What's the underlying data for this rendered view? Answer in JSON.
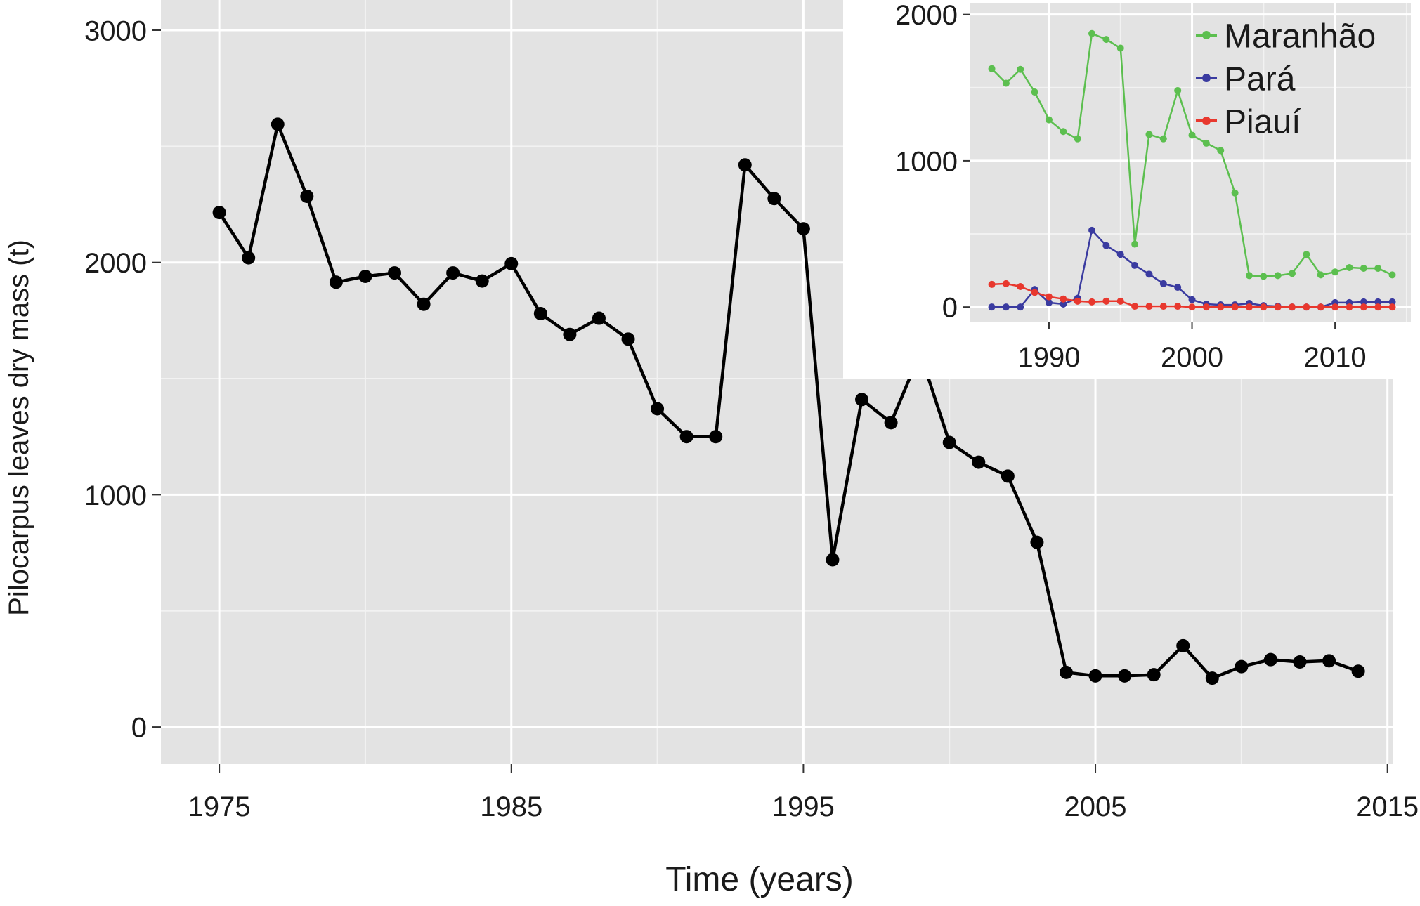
{
  "chart_data": [
    {
      "type": "line",
      "title": "",
      "xlabel": "Time (years)",
      "ylabel": "Pilocarpus leaves dry mass (t)",
      "xlim": [
        1973,
        2015.2
      ],
      "ylim": [
        -160,
        3130
      ],
      "xticks": [
        1975,
        1985,
        1995,
        2005,
        2015
      ],
      "yticks": [
        0,
        1000,
        2000,
        3000
      ],
      "grid": true,
      "legend": "none",
      "series": [
        {
          "color": "#000000",
          "x": [
            1975,
            1976,
            1977,
            1978,
            1979,
            1980,
            1981,
            1982,
            1983,
            1984,
            1985,
            1986,
            1987,
            1988,
            1989,
            1990,
            1991,
            1992,
            1993,
            1994,
            1995,
            1996,
            1997,
            1998,
            1999,
            2000,
            2001,
            2002,
            2003,
            2004,
            2005,
            2006,
            2007,
            2008,
            2009,
            2010,
            2011,
            2012,
            2013,
            2014
          ],
          "y": [
            2215,
            2020,
            2595,
            2285,
            1915,
            1940,
            1955,
            1820,
            1955,
            1920,
            1995,
            1780,
            1690,
            1760,
            1670,
            1370,
            1250,
            1250,
            2420,
            2275,
            2145,
            720,
            1410,
            1310,
            1610,
            1225,
            1140,
            1080,
            795,
            235,
            220,
            220,
            225,
            350,
            210,
            260,
            290,
            280,
            285,
            240
          ]
        }
      ]
    },
    {
      "type": "line",
      "title": "",
      "xlabel": "",
      "ylabel": "",
      "xlim": [
        1984.5,
        2015.3
      ],
      "ylim": [
        -100,
        2080
      ],
      "xticks": [
        1990,
        2000,
        2010
      ],
      "yticks": [
        0,
        1000,
        2000
      ],
      "grid": true,
      "legend": "top-right",
      "series": [
        {
          "name": "Maranhão",
          "color": "#5cbf4f",
          "x": [
            1986,
            1987,
            1988,
            1989,
            1990,
            1991,
            1992,
            1993,
            1994,
            1995,
            1996,
            1997,
            1998,
            1999,
            2000,
            2001,
            2002,
            2003,
            2004,
            2005,
            2006,
            2007,
            2008,
            2009,
            2010,
            2011,
            2012,
            2013,
            2014
          ],
          "y": [
            1630,
            1530,
            1625,
            1470,
            1280,
            1200,
            1150,
            1870,
            1830,
            1770,
            430,
            1180,
            1150,
            1480,
            1175,
            1120,
            1070,
            780,
            215,
            210,
            215,
            230,
            360,
            220,
            240,
            270,
            265,
            265,
            220
          ]
        },
        {
          "name": "Pará",
          "color": "#3a3ba0",
          "x": [
            1986,
            1987,
            1988,
            1989,
            1990,
            1991,
            1992,
            1993,
            1994,
            1995,
            1996,
            1997,
            1998,
            1999,
            2000,
            2001,
            2002,
            2003,
            2004,
            2005,
            2006,
            2007,
            2008,
            2009,
            2010,
            2011,
            2012,
            2013,
            2014
          ],
          "y": [
            0,
            0,
            0,
            120,
            30,
            20,
            60,
            525,
            420,
            360,
            285,
            225,
            160,
            135,
            50,
            20,
            15,
            15,
            25,
            10,
            5,
            0,
            0,
            0,
            30,
            30,
            35,
            35,
            35
          ]
        },
        {
          "name": "Piauí",
          "color": "#e8382e",
          "x": [
            1986,
            1987,
            1988,
            1989,
            1990,
            1991,
            1992,
            1993,
            1994,
            1995,
            1996,
            1997,
            1998,
            1999,
            2000,
            2001,
            2002,
            2003,
            2004,
            2005,
            2006,
            2007,
            2008,
            2009,
            2010,
            2011,
            2012,
            2013,
            2014
          ],
          "y": [
            155,
            160,
            140,
            100,
            70,
            55,
            40,
            35,
            40,
            40,
            5,
            5,
            5,
            5,
            0,
            0,
            0,
            0,
            0,
            0,
            0,
            0,
            0,
            0,
            0,
            0,
            0,
            0,
            0
          ]
        }
      ]
    }
  ]
}
